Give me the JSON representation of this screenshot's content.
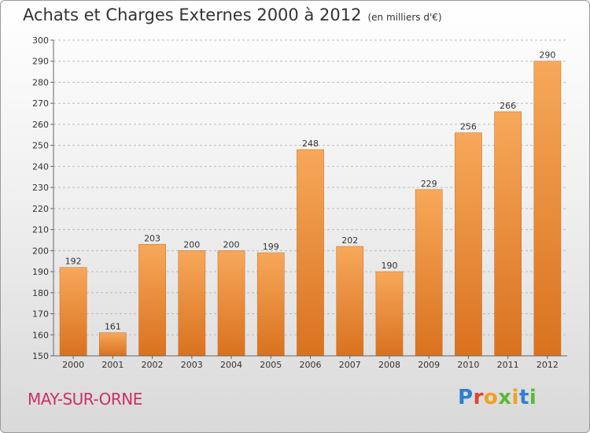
{
  "header": {
    "title": "Achats et Charges Externes 2000 à 2012",
    "subtitle": "(en milliers d'€)"
  },
  "footer": {
    "commune": "MAY-SUR-ORNE",
    "brand": [
      "P",
      "r",
      "o",
      "x",
      "i",
      "t",
      "i"
    ],
    "brand_colors": [
      "#2f7fd1",
      "#e0432b",
      "#f2a01c",
      "#5fb832",
      "#f2a01c",
      "#2f7fd1",
      "#5fb832"
    ]
  },
  "colors": {
    "bar_light": "#f7a85a",
    "bar_dark": "#d9721f",
    "grid": "#bbbbbb",
    "axis": "#666666"
  },
  "chart_data": {
    "type": "bar",
    "title": "Achats et Charges Externes 2000 à 2012",
    "subtitle": "(en milliers d'€)",
    "categories": [
      "2000",
      "2001",
      "2002",
      "2003",
      "2004",
      "2005",
      "2006",
      "2007",
      "2008",
      "2009",
      "2010",
      "2011",
      "2012"
    ],
    "values": [
      192,
      161,
      203,
      200,
      200,
      199,
      248,
      202,
      190,
      229,
      256,
      266,
      290
    ],
    "ylim": [
      150,
      300
    ],
    "yticks": [
      150,
      160,
      170,
      180,
      190,
      200,
      210,
      220,
      230,
      240,
      250,
      260,
      270,
      280,
      290,
      300
    ],
    "grid": true,
    "data_labels": true
  }
}
